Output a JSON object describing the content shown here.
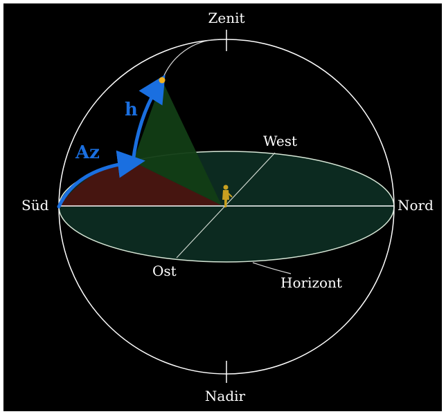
{
  "labels": {
    "zenith": "Zenit",
    "nadir": "Nadir",
    "south": "Süd",
    "north": "Nord",
    "west": "West",
    "east": "Ost",
    "horizon": "Horizont",
    "azimuth": "Az",
    "altitude": "h"
  },
  "colors": {
    "background": "#000000",
    "lines": "#ffffff",
    "horizon_fill": "#0c2a20",
    "azimuth_sector": "#4a1410",
    "altitude_sector": "#123d15",
    "arrows": "#1a6fe0",
    "star": "#f0b020",
    "observer": "#c8a020"
  }
}
